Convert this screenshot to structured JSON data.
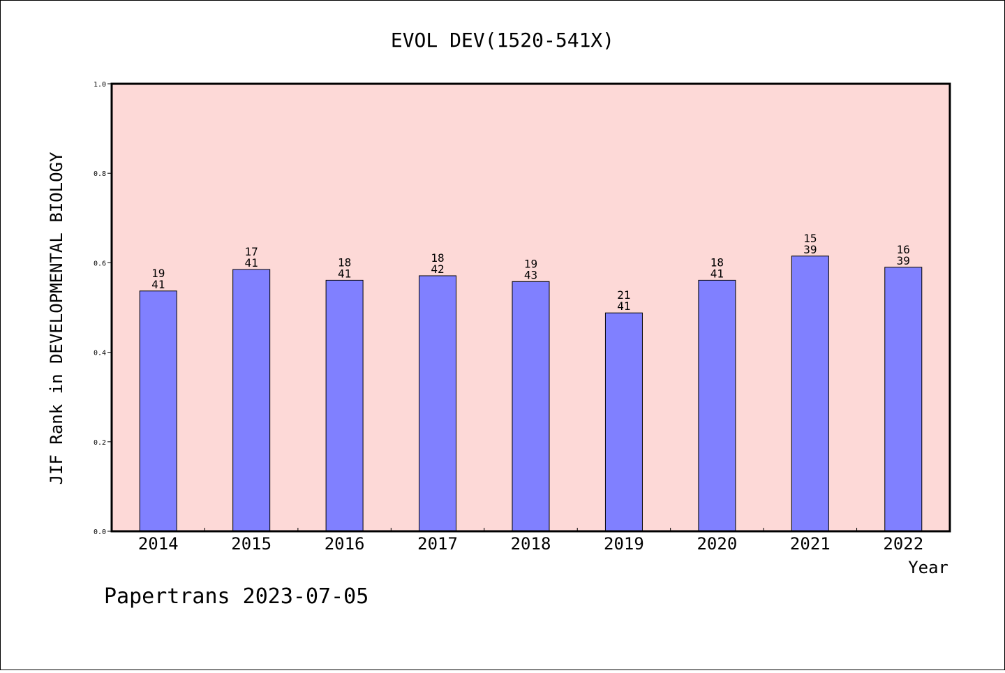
{
  "chart_data": {
    "type": "bar",
    "title": "EVOL DEV(1520-541X)",
    "xlabel": "Year",
    "ylabel": "JIF Rank in DEVELOPMENTAL BIOLOGY",
    "ylim": [
      0,
      1.0
    ],
    "yticks": [
      "0.0",
      "0.2",
      "0.4",
      "0.6",
      "0.8",
      "1.0"
    ],
    "categories": [
      "2014",
      "2015",
      "2016",
      "2017",
      "2018",
      "2019",
      "2020",
      "2021",
      "2022"
    ],
    "values": [
      0.537,
      0.585,
      0.561,
      0.571,
      0.558,
      0.488,
      0.561,
      0.615,
      0.59
    ],
    "bar_labels": [
      {
        "top": "19",
        "bottom": "41"
      },
      {
        "top": "17",
        "bottom": "41"
      },
      {
        "top": "18",
        "bottom": "41"
      },
      {
        "top": "18",
        "bottom": "42"
      },
      {
        "top": "19",
        "bottom": "43"
      },
      {
        "top": "21",
        "bottom": "41"
      },
      {
        "top": "18",
        "bottom": "41"
      },
      {
        "top": "15",
        "bottom": "39"
      },
      {
        "top": "16",
        "bottom": "39"
      }
    ],
    "grid": false,
    "colors": {
      "plot_background": "#fdd9d7",
      "bar": "#8080ff",
      "bar_edge": "#000000"
    }
  },
  "footer": {
    "text": "Papertrans 2023-07-05"
  }
}
